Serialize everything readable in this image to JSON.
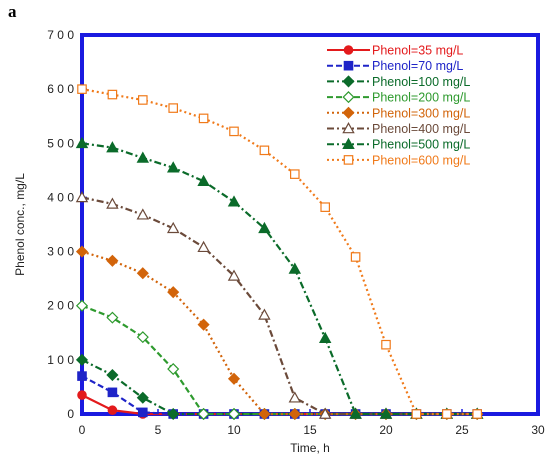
{
  "panel_label": "a",
  "chart_data": {
    "type": "line",
    "xlabel": "Time, h",
    "ylabel": "Phenol conc., mg/L",
    "xlim": [
      0,
      30
    ],
    "ylim": [
      0,
      700
    ],
    "xticks": [
      0,
      5,
      10,
      15,
      20,
      25,
      30
    ],
    "yticks": [
      0,
      100,
      200,
      300,
      400,
      500,
      600,
      700
    ],
    "xtick_labels": [
      "0",
      "5",
      "10",
      "15",
      "20",
      "25",
      "30"
    ],
    "ytick_labels": [
      "0",
      "1 0 0",
      "2 0 0",
      "3 0 0",
      "4 0 0",
      "5 0 0",
      "6 0 0",
      "7 0 0"
    ],
    "grid": false,
    "legend_position": "top-right",
    "frame_color": "#1a1ae0",
    "series": [
      {
        "name": "Phenol=35 mg/L",
        "color": "#e31a1c",
        "marker": "circle-filled",
        "dash": "solid",
        "x": [
          0,
          2,
          4,
          6,
          8,
          10,
          12,
          14,
          16,
          18,
          20,
          22,
          24,
          26
        ],
        "y": [
          35,
          7,
          0,
          0,
          0,
          0,
          0,
          0,
          0,
          0,
          0,
          0,
          0,
          0
        ]
      },
      {
        "name": "Phenol=70 mg/L",
        "color": "#1f24c8",
        "marker": "square-filled",
        "dash": "dash",
        "x": [
          0,
          2,
          4,
          6,
          8,
          10,
          12,
          14,
          16,
          18,
          20,
          22,
          24,
          26
        ],
        "y": [
          70,
          40,
          3,
          0,
          0,
          0,
          0,
          0,
          0,
          0,
          0,
          0,
          0,
          0
        ]
      },
      {
        "name": "Phenol=100 mg/L",
        "color": "#0b6b2a",
        "marker": "diamond-filled",
        "dash": "dashdot",
        "x": [
          0,
          2,
          4,
          6,
          8,
          10,
          12,
          14,
          16,
          18,
          20,
          22,
          24,
          26
        ],
        "y": [
          100,
          72,
          30,
          0,
          0,
          0,
          0,
          0,
          0,
          0,
          0,
          0,
          0,
          0
        ]
      },
      {
        "name": "Phenol=200 mg/L",
        "color": "#2e9a2e",
        "marker": "diamond-open",
        "dash": "dash",
        "x": [
          0,
          2,
          4,
          6,
          8,
          10,
          12,
          14,
          16,
          18,
          20,
          22,
          24,
          26
        ],
        "y": [
          200,
          178,
          142,
          83,
          0,
          0,
          0,
          0,
          0,
          0,
          0,
          0,
          0,
          0
        ]
      },
      {
        "name": "Phenol=300 mg/L",
        "color": "#d2640a",
        "marker": "diamond-filled",
        "dash": "dot",
        "x": [
          0,
          2,
          4,
          6,
          8,
          10,
          12,
          14,
          16,
          18,
          20,
          22,
          24,
          26
        ],
        "y": [
          300,
          283,
          260,
          225,
          165,
          65,
          0,
          0,
          0,
          0,
          0,
          0,
          0,
          0
        ]
      },
      {
        "name": "Phenol=400 mg/L",
        "color": "#6b4a3a",
        "marker": "triangle-open",
        "dash": "dashdot",
        "x": [
          0,
          2,
          4,
          6,
          8,
          10,
          12,
          14,
          16,
          18,
          20,
          22,
          24,
          26
        ],
        "y": [
          400,
          388,
          368,
          343,
          308,
          255,
          183,
          30,
          0,
          0,
          0,
          0,
          0,
          0
        ]
      },
      {
        "name": "Phenol=500 mg/L",
        "color": "#0b6b2a",
        "marker": "triangle-filled",
        "dash": "dashdot",
        "x": [
          0,
          2,
          4,
          6,
          8,
          10,
          12,
          14,
          16,
          18,
          20,
          22,
          24,
          26
        ],
        "y": [
          500,
          492,
          473,
          455,
          430,
          392,
          343,
          268,
          140,
          0,
          0,
          0,
          0,
          0
        ]
      },
      {
        "name": "Phenol=600 mg/L",
        "color": "#f07a1a",
        "marker": "square-open",
        "dash": "dot",
        "x": [
          0,
          2,
          4,
          6,
          8,
          10,
          12,
          14,
          16,
          18,
          20,
          22,
          24,
          26
        ],
        "y": [
          600,
          590,
          580,
          565,
          546,
          522,
          487,
          443,
          382,
          290,
          128,
          0,
          0,
          0
        ]
      }
    ]
  }
}
